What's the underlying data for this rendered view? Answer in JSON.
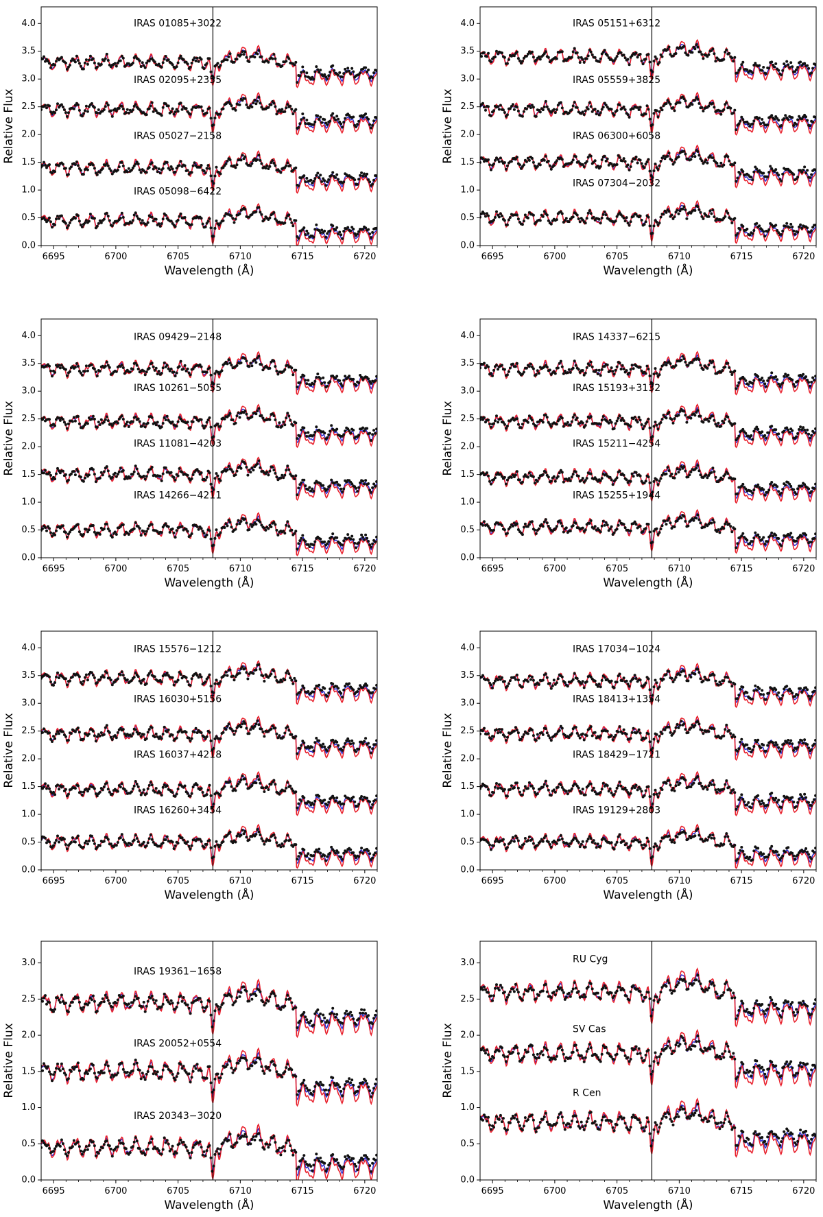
{
  "chart_data": [
    {
      "type": "line",
      "xlabel": "Wavelength (Å)",
      "ylabel": "Relative Flux",
      "xlim": [
        6694,
        6721
      ],
      "ylim": [
        0.0,
        4.3
      ],
      "xticks": [
        6695,
        6700,
        6705,
        6710,
        6715,
        6720
      ],
      "xtick_labels": [
        "6695",
        "6700",
        "6705",
        "6710",
        "6715",
        "6720"
      ],
      "yticks": [
        0.0,
        0.5,
        1.0,
        1.5,
        2.0,
        2.5,
        3.0,
        3.5,
        4.0
      ],
      "ytick_labels": [
        "0.0",
        "0.5",
        "1.0",
        "1.5",
        "2.0",
        "2.5",
        "3.0",
        "3.5",
        "4.0"
      ],
      "vline": 6707.8,
      "spectra": [
        {
          "name": "IRAS 01085+3022",
          "offset": 3.3,
          "label_y": 4.0
        },
        {
          "name": "IRAS 02095+2355",
          "offset": 2.45,
          "label_y": 2.98
        },
        {
          "name": "IRAS 05027−2158",
          "offset": 1.4,
          "label_y": 1.97
        },
        {
          "name": "IRAS 05098−6422",
          "offset": 0.45,
          "label_y": 0.97
        }
      ]
    },
    {
      "type": "line",
      "xlabel": "Wavelength (Å)",
      "ylabel": "Relative Flux",
      "xlim": [
        6694,
        6721
      ],
      "ylim": [
        0.0,
        4.3
      ],
      "xticks": [
        6695,
        6700,
        6705,
        6710,
        6715,
        6720
      ],
      "xtick_labels": [
        "6695",
        "6700",
        "6705",
        "6710",
        "6715",
        "6720"
      ],
      "yticks": [
        0.0,
        0.5,
        1.0,
        1.5,
        2.0,
        2.5,
        3.0,
        3.5,
        4.0
      ],
      "ytick_labels": [
        "0.0",
        "0.5",
        "1.0",
        "1.5",
        "2.0",
        "2.5",
        "3.0",
        "3.5",
        "4.0"
      ],
      "vline": 6707.8,
      "spectra": [
        {
          "name": "IRAS 05151+6312",
          "offset": 3.4,
          "label_y": 4.0
        },
        {
          "name": "IRAS 05559+3825",
          "offset": 2.45,
          "label_y": 2.98
        },
        {
          "name": "IRAS 06300+6058",
          "offset": 1.5,
          "label_y": 1.97
        },
        {
          "name": "IRAS 07304−2032",
          "offset": 0.5,
          "label_y": 1.12
        }
      ]
    },
    {
      "type": "line",
      "xlabel": "Wavelength (Å)",
      "ylabel": "Relative Flux",
      "xlim": [
        6694,
        6721
      ],
      "ylim": [
        0.0,
        4.3
      ],
      "xticks": [
        6695,
        6700,
        6705,
        6710,
        6715,
        6720
      ],
      "xtick_labels": [
        "6695",
        "6700",
        "6705",
        "6710",
        "6715",
        "6720"
      ],
      "yticks": [
        0.0,
        0.5,
        1.0,
        1.5,
        2.0,
        2.5,
        3.0,
        3.5,
        4.0
      ],
      "ytick_labels": [
        "0.0",
        "0.5",
        "1.0",
        "1.5",
        "2.0",
        "2.5",
        "3.0",
        "3.5",
        "4.0"
      ],
      "vline": 6707.8,
      "spectra": [
        {
          "name": "IRAS 09429−2148",
          "offset": 3.4,
          "label_y": 3.97
        },
        {
          "name": "IRAS 10261−5055",
          "offset": 2.45,
          "label_y": 3.05
        },
        {
          "name": "IRAS 11081−4203",
          "offset": 1.5,
          "label_y": 2.05
        },
        {
          "name": "IRAS 14266−4211",
          "offset": 0.5,
          "label_y": 1.12
        }
      ]
    },
    {
      "type": "line",
      "xlabel": "Wavelength (Å)",
      "ylabel": "Relative Flux",
      "xlim": [
        6694,
        6721
      ],
      "ylim": [
        0.0,
        4.3
      ],
      "xticks": [
        6695,
        6700,
        6705,
        6710,
        6715,
        6720
      ],
      "xtick_labels": [
        "6695",
        "6700",
        "6705",
        "6710",
        "6715",
        "6720"
      ],
      "yticks": [
        0.0,
        0.5,
        1.0,
        1.5,
        2.0,
        2.5,
        3.0,
        3.5,
        4.0
      ],
      "ytick_labels": [
        "0.0",
        "0.5",
        "1.0",
        "1.5",
        "2.0",
        "2.5",
        "3.0",
        "3.5",
        "4.0"
      ],
      "vline": 6707.8,
      "spectra": [
        {
          "name": "IRAS 14337−6215",
          "offset": 3.4,
          "label_y": 3.97
        },
        {
          "name": "IRAS 15193+3132",
          "offset": 2.45,
          "label_y": 3.05
        },
        {
          "name": "IRAS 15211−4254",
          "offset": 1.45,
          "label_y": 2.05
        },
        {
          "name": "IRAS 15255+1944",
          "offset": 0.55,
          "label_y": 1.12
        }
      ]
    },
    {
      "type": "line",
      "xlabel": "Wavelength (Å)",
      "ylabel": "Relative Flux",
      "xlim": [
        6694,
        6721
      ],
      "ylim": [
        0.0,
        4.3
      ],
      "xticks": [
        6695,
        6700,
        6705,
        6710,
        6715,
        6720
      ],
      "xtick_labels": [
        "6695",
        "6700",
        "6705",
        "6710",
        "6715",
        "6720"
      ],
      "yticks": [
        0.0,
        0.5,
        1.0,
        1.5,
        2.0,
        2.5,
        3.0,
        3.5,
        4.0
      ],
      "ytick_labels": [
        "0.0",
        "0.5",
        "1.0",
        "1.5",
        "2.0",
        "2.5",
        "3.0",
        "3.5",
        "4.0"
      ],
      "vline": 6707.8,
      "spectra": [
        {
          "name": "IRAS 15576−1212",
          "offset": 3.45,
          "label_y": 3.97
        },
        {
          "name": "IRAS 16030+5156",
          "offset": 2.45,
          "label_y": 3.07
        },
        {
          "name": "IRAS 16037+4218",
          "offset": 1.45,
          "label_y": 2.07
        },
        {
          "name": "IRAS 16260+3454",
          "offset": 0.5,
          "label_y": 1.07
        }
      ]
    },
    {
      "type": "line",
      "xlabel": "Wavelength (Å)",
      "ylabel": "Relative Flux",
      "xlim": [
        6694,
        6721
      ],
      "ylim": [
        0.0,
        4.3
      ],
      "xticks": [
        6695,
        6700,
        6705,
        6710,
        6715,
        6720
      ],
      "xtick_labels": [
        "6695",
        "6700",
        "6705",
        "6710",
        "6715",
        "6720"
      ],
      "yticks": [
        0.0,
        0.5,
        1.0,
        1.5,
        2.0,
        2.5,
        3.0,
        3.5,
        4.0
      ],
      "ytick_labels": [
        "0.0",
        "0.5",
        "1.0",
        "1.5",
        "2.0",
        "2.5",
        "3.0",
        "3.5",
        "4.0"
      ],
      "vline": 6707.8,
      "spectra": [
        {
          "name": "IRAS 17034−1024",
          "offset": 3.4,
          "label_y": 3.97
        },
        {
          "name": "IRAS 18413+1354",
          "offset": 2.45,
          "label_y": 3.07
        },
        {
          "name": "IRAS 18429−1721",
          "offset": 1.45,
          "label_y": 2.07
        },
        {
          "name": "IRAS 19129+2803",
          "offset": 0.5,
          "label_y": 1.07
        }
      ]
    },
    {
      "type": "line",
      "xlabel": "Wavelength (Å)",
      "ylabel": "Relative Flux",
      "xlim": [
        6694,
        6721
      ],
      "ylim": [
        0.0,
        3.3
      ],
      "xticks": [
        6695,
        6700,
        6705,
        6710,
        6715,
        6720
      ],
      "xtick_labels": [
        "6695",
        "6700",
        "6705",
        "6710",
        "6715",
        "6720"
      ],
      "yticks": [
        0.0,
        0.5,
        1.0,
        1.5,
        2.0,
        2.5,
        3.0
      ],
      "ytick_labels": [
        "0.0",
        "0.5",
        "1.0",
        "1.5",
        "2.0",
        "2.5",
        "3.0"
      ],
      "vline": 6707.8,
      "spectra": [
        {
          "name": "IRAS 19361−1658",
          "offset": 2.45,
          "label_y": 2.88
        },
        {
          "name": "IRAS 20052+0554",
          "offset": 1.5,
          "label_y": 1.88
        },
        {
          "name": "IRAS 20343−3020",
          "offset": 0.45,
          "label_y": 0.88
        }
      ]
    },
    {
      "type": "line",
      "xlabel": "Wavelength (Å)",
      "ylabel": "Relative Flux",
      "xlim": [
        6694,
        6721
      ],
      "ylim": [
        0.0,
        3.3
      ],
      "xticks": [
        6695,
        6700,
        6705,
        6710,
        6715,
        6720
      ],
      "xtick_labels": [
        "6695",
        "6700",
        "6705",
        "6710",
        "6715",
        "6720"
      ],
      "yticks": [
        0.0,
        0.5,
        1.0,
        1.5,
        2.0,
        2.5,
        3.0
      ],
      "ytick_labels": [
        "0.0",
        "0.5",
        "1.0",
        "1.5",
        "2.0",
        "2.5",
        "3.0"
      ],
      "vline": 6707.8,
      "spectra": [
        {
          "name": "RU Cyg",
          "offset": 2.6,
          "label_y": 3.05
        },
        {
          "name": "SV Cas",
          "offset": 1.75,
          "label_y": 2.08
        },
        {
          "name": "R Cen",
          "offset": 0.8,
          "label_y": 1.2
        }
      ]
    }
  ],
  "colors": {
    "model_red": "#e8212d",
    "model_blue": "#2a2ad0",
    "observed": "#111111",
    "axis": "#000000"
  }
}
